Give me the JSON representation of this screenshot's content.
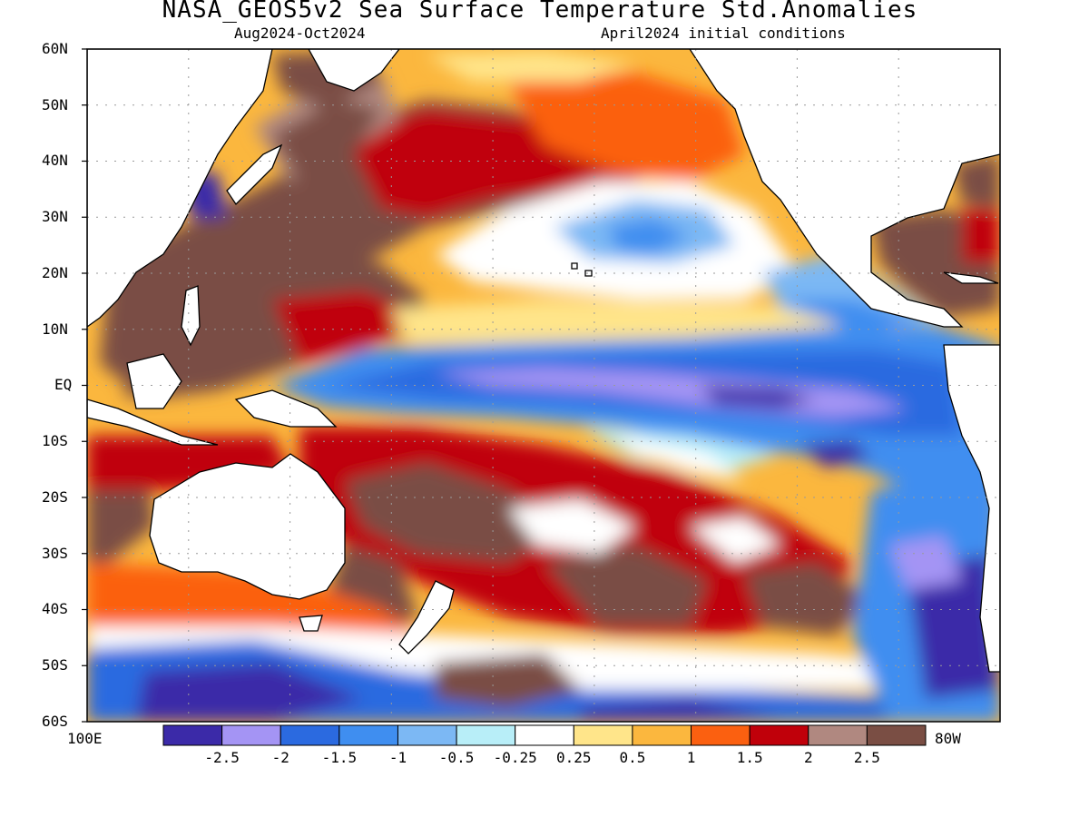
{
  "title": "NASA_GEOS5v2 Sea Surface Temperature Std.Anomalies",
  "subtitle_left": "Aug2024-Oct2024",
  "subtitle_right": "April2024 initial conditions",
  "lat_labels": [
    "60N",
    "50N",
    "40N",
    "30N",
    "20N",
    "10N",
    "EQ",
    "10S",
    "20S",
    "30S",
    "40S",
    "50S",
    "60S"
  ],
  "lon_left": "100E",
  "lon_right": "80W",
  "colorbar": {
    "colors": [
      "#3b2aa8",
      "#a494f4",
      "#2b6ae0",
      "#3f8ef0",
      "#7cb8f4",
      "#b8eef8",
      "#ffffff",
      "#ffe58a",
      "#fbb73e",
      "#fb6010",
      "#c0000a",
      "#b08880",
      "#7a4e44"
    ],
    "ticks": [
      "-2.5",
      "-2",
      "-1.5",
      "-1",
      "-0.5",
      "-0.25",
      "0.25",
      "0.5",
      "1",
      "1.5",
      "2",
      "2.5"
    ]
  },
  "map_features": [
    {
      "name": "equatorial-pacific-cold-tongue",
      "anomaly": -2.5
    },
    {
      "name": "north-pacific-warm-band",
      "anomaly": 2.5
    },
    {
      "name": "south-pacific-warm-band",
      "anomaly": 2.5
    },
    {
      "name": "southern-ocean-cold",
      "anomaly": -2.5
    },
    {
      "name": "western-pacific-warm-pool",
      "anomaly": 2.5
    },
    {
      "name": "northeast-pacific-warm",
      "anomaly": 1
    },
    {
      "name": "subtropical-north-pacific-cool",
      "anomaly": -1
    },
    {
      "name": "gulf-of-mexico-warm",
      "anomaly": 2.5
    }
  ]
}
